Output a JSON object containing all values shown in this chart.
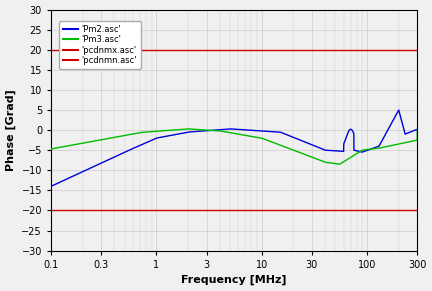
{
  "xlabel": "Frequency [MHz]",
  "ylabel": "Phase [Grad]",
  "ylim": [
    -30,
    30
  ],
  "xmin": 0.1,
  "xmax": 300,
  "yticks": [
    -30,
    -25,
    -20,
    -15,
    -10,
    -5,
    0,
    5,
    10,
    15,
    20,
    25,
    30
  ],
  "red_line_upper": 20,
  "red_line_lower": -20,
  "legend_labels": [
    "'Pm2.asc'",
    "'Pm3.asc'",
    "'pcdnmx.asc'",
    "'pcdnmn.asc'"
  ],
  "legend_colors": [
    "#0000dd",
    "#00bb00",
    "#cc0000",
    "#cc0000"
  ],
  "line_blue_color": "#0000dd",
  "line_green_color": "#00bb00",
  "line_red_color": "#cc0000",
  "background_color": "#f0f0f0",
  "grid_color": "#cccccc",
  "xtick_vals": [
    0.1,
    0.3,
    1,
    3,
    10,
    30,
    100,
    300
  ],
  "xtick_labels": [
    "0.1",
    "0.3",
    "1",
    "3",
    "10",
    "30",
    "100",
    "300"
  ]
}
